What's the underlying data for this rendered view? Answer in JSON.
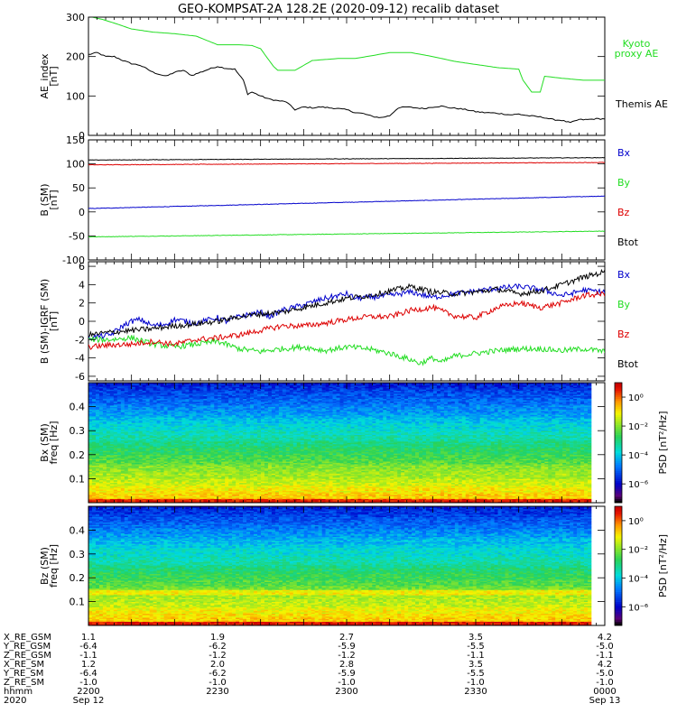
{
  "title": "GEO-KOMPSAT-2A 128.2E (2020-09-12) recalib dataset",
  "colors": {
    "black": "#000000",
    "blue": "#0000cc",
    "green": "#22dd22",
    "red": "#dd0000",
    "kyoto_green": "#22dd22"
  },
  "chart_data": [
    {
      "type": "line",
      "panel": "ae_index",
      "ylabel": "AE_index",
      "ylabel_unit": "[nT]",
      "ylim": [
        0,
        300
      ],
      "yticks": [
        0,
        100,
        200,
        300
      ],
      "x_range_minutes": [
        0,
        120
      ],
      "series": [
        {
          "name": "Kyoto proxy AE",
          "label_lines": [
            "Kyoto",
            "proxy AE"
          ],
          "color": "#22dd22",
          "x": [
            0,
            3,
            6,
            10,
            15,
            20,
            25,
            30,
            35,
            38,
            40,
            43,
            44,
            48,
            52,
            58,
            62,
            70,
            75,
            80,
            85,
            90,
            95,
            100,
            101,
            103,
            105,
            106,
            110,
            115,
            120
          ],
          "y": [
            302,
            295,
            285,
            270,
            262,
            258,
            252,
            230,
            230,
            228,
            220,
            175,
            165,
            165,
            190,
            195,
            195,
            210,
            210,
            200,
            188,
            180,
            172,
            168,
            140,
            110,
            110,
            150,
            145,
            140,
            140
          ]
        },
        {
          "name": "Themis AE",
          "label_lines": [
            "Themis AE"
          ],
          "color": "#000000",
          "x": [
            0,
            2,
            4,
            6,
            8,
            10,
            12,
            15,
            18,
            20,
            22,
            24,
            26,
            28,
            30,
            32,
            34,
            36,
            37,
            38,
            40,
            42,
            44,
            46,
            48,
            50,
            52,
            54,
            56,
            58,
            60,
            62,
            64,
            66,
            68,
            70,
            72,
            74,
            76,
            78,
            80,
            82,
            84,
            86,
            88,
            90,
            92,
            94,
            96,
            98,
            100,
            102,
            104,
            106,
            108,
            110,
            112,
            114,
            116,
            118,
            120
          ],
          "y": [
            205,
            210,
            200,
            200,
            190,
            182,
            178,
            160,
            150,
            160,
            165,
            152,
            160,
            168,
            175,
            170,
            168,
            140,
            105,
            110,
            100,
            92,
            88,
            85,
            65,
            72,
            70,
            72,
            70,
            68,
            65,
            58,
            55,
            48,
            45,
            50,
            70,
            72,
            70,
            68,
            72,
            74,
            70,
            68,
            65,
            60,
            58,
            57,
            55,
            52,
            54,
            50,
            48,
            45,
            40,
            38,
            32,
            40,
            40,
            42,
            42
          ]
        }
      ]
    },
    {
      "type": "line",
      "panel": "b_sm",
      "ylabel": "B (SM)",
      "ylabel_unit": "[nT]",
      "ylim": [
        -100,
        150
      ],
      "yticks": [
        -100,
        -50,
        0,
        50,
        100,
        150
      ],
      "x_range_minutes": [
        0,
        120
      ],
      "series": [
        {
          "name": "Bx",
          "color": "#0000cc",
          "x": [
            0,
            120
          ],
          "y": [
            7,
            33
          ]
        },
        {
          "name": "By",
          "color": "#22dd22",
          "x": [
            0,
            120
          ],
          "y": [
            -52,
            -40
          ]
        },
        {
          "name": "Bz",
          "color": "#dd0000",
          "x": [
            0,
            120
          ],
          "y": [
            98,
            103
          ]
        },
        {
          "name": "Btot",
          "color": "#000000",
          "x": [
            0,
            120
          ],
          "y": [
            108,
            113
          ]
        }
      ]
    },
    {
      "type": "line",
      "panel": "b_sm_igrf",
      "ylabel": "B (SM)-IGRF (SM)",
      "ylabel_unit": "[nT]",
      "ylim": [
        -6.5,
        6.5
      ],
      "yticks": [
        -6,
        -4,
        -2,
        0,
        2,
        4,
        6
      ],
      "x_range_minutes": [
        0,
        120
      ],
      "series": [
        {
          "name": "Bx",
          "color": "#0000cc",
          "x": [
            0,
            5,
            8,
            10,
            12,
            15,
            18,
            20,
            25,
            30,
            32,
            35,
            40,
            42,
            45,
            50,
            55,
            60,
            62,
            65,
            70,
            75,
            80,
            85,
            90,
            95,
            100,
            105,
            110,
            112,
            115,
            120
          ],
          "y": [
            -1.8,
            -1.5,
            -0.5,
            0.0,
            0.2,
            -0.5,
            -0.3,
            0.2,
            -0.2,
            0.4,
            0.0,
            0.5,
            1.0,
            0.5,
            1.2,
            1.8,
            2.5,
            3.0,
            2.5,
            2.6,
            2.8,
            3.2,
            2.6,
            3.0,
            3.3,
            3.6,
            3.8,
            3.5,
            2.8,
            3.0,
            3.4,
            3.2
          ]
        },
        {
          "name": "By",
          "color": "#22dd22",
          "x": [
            0,
            5,
            10,
            15,
            20,
            25,
            30,
            35,
            40,
            45,
            50,
            55,
            60,
            65,
            70,
            75,
            77,
            80,
            82,
            85,
            90,
            95,
            100,
            105,
            110,
            115,
            120
          ],
          "y": [
            -2.0,
            -2.0,
            -1.8,
            -2.5,
            -2.8,
            -2.5,
            -2.2,
            -3.0,
            -3.3,
            -3.0,
            -2.8,
            -3.2,
            -2.8,
            -3.0,
            -3.5,
            -4.2,
            -4.6,
            -4.0,
            -4.5,
            -3.8,
            -3.5,
            -3.2,
            -3.0,
            -3.0,
            -3.2,
            -3.0,
            -3.3
          ]
        },
        {
          "name": "Bz",
          "color": "#dd0000",
          "x": [
            0,
            5,
            10,
            15,
            20,
            25,
            30,
            35,
            40,
            45,
            50,
            55,
            60,
            65,
            70,
            75,
            80,
            85,
            90,
            95,
            100,
            105,
            110,
            115,
            120
          ],
          "y": [
            -2.8,
            -2.6,
            -2.5,
            -2.2,
            -2.5,
            -2.0,
            -1.8,
            -1.5,
            -1.0,
            -0.5,
            -0.5,
            -0.2,
            0.2,
            0.5,
            0.5,
            1.2,
            1.5,
            0.6,
            0.4,
            1.5,
            2.0,
            1.5,
            2.0,
            2.8,
            3.0
          ]
        },
        {
          "name": "Btot",
          "color": "#000000",
          "x": [
            0,
            5,
            10,
            15,
            20,
            25,
            30,
            35,
            40,
            45,
            50,
            55,
            60,
            65,
            70,
            75,
            80,
            85,
            90,
            95,
            100,
            105,
            110,
            115,
            120
          ],
          "y": [
            -1.5,
            -1.2,
            -1.0,
            -0.8,
            -0.5,
            -0.3,
            0.0,
            0.5,
            0.8,
            1.0,
            1.5,
            2.0,
            2.5,
            2.8,
            3.3,
            3.8,
            3.2,
            3.0,
            3.2,
            3.5,
            3.0,
            3.3,
            4.0,
            4.8,
            5.4
          ]
        }
      ]
    },
    {
      "type": "heatmap",
      "panel": "bx_spectrogram",
      "ylabel": "Bx (SM)",
      "ylabel2": "freq [Hz]",
      "ylim": [
        0,
        0.5
      ],
      "yticks": [
        0.1,
        0.2,
        0.3,
        0.4
      ],
      "colorbar_label": "PSD [nT²/Hz]",
      "colorbar_ticks": [
        "10⁰",
        "10⁻²",
        "10⁻⁴",
        "10⁻⁶"
      ],
      "colorbar_values": [
        1,
        0.01,
        0.0001,
        1e-06
      ],
      "colorbar_range": [
        5e-08,
        10
      ]
    },
    {
      "type": "heatmap",
      "panel": "bz_spectrogram",
      "ylabel": "Bz (SM)",
      "ylabel2": "freq [Hz]",
      "ylim": [
        0,
        0.5
      ],
      "yticks": [
        0.1,
        0.2,
        0.3,
        0.4
      ],
      "colorbar_label": "PSD [nT²/Hz]",
      "colorbar_ticks": [
        "10⁰",
        "10⁻²",
        "10⁻⁴",
        "10⁻⁶"
      ],
      "colorbar_values": [
        1,
        0.01,
        0.0001,
        1e-06
      ],
      "colorbar_range": [
        5e-08,
        10
      ]
    }
  ],
  "x_axis": {
    "tick_positions_minutes": [
      0,
      30,
      60,
      90,
      120
    ],
    "rows": [
      {
        "label": "X_RE_GSM",
        "values": [
          "1.1",
          "1.9",
          "2.7",
          "3.5",
          "4.2"
        ]
      },
      {
        "label": "Y_RE_GSM",
        "values": [
          "-6.4",
          "-6.2",
          "-5.9",
          "-5.5",
          "-5.0"
        ]
      },
      {
        "label": "Z_RE_GSM",
        "values": [
          "-1.1",
          "-1.2",
          "-1.2",
          "-1.1",
          "-1.1"
        ]
      },
      {
        "label": "X_RE_SM",
        "values": [
          "1.2",
          "2.0",
          "2.8",
          "3.5",
          "4.2"
        ]
      },
      {
        "label": "Y_RE_SM",
        "values": [
          "-6.4",
          "-6.2",
          "-5.9",
          "-5.5",
          "-5.0"
        ]
      },
      {
        "label": "Z_RE_SM",
        "values": [
          "-1.0",
          "-1.0",
          "-1.0",
          "-1.0",
          "-1.0"
        ]
      },
      {
        "label": "hhmm",
        "values": [
          "2200",
          "2230",
          "2300",
          "2330",
          "0000"
        ]
      },
      {
        "label": "2020",
        "values": [
          "Sep 12",
          "",
          "",
          "",
          "Sep 13"
        ]
      }
    ]
  }
}
